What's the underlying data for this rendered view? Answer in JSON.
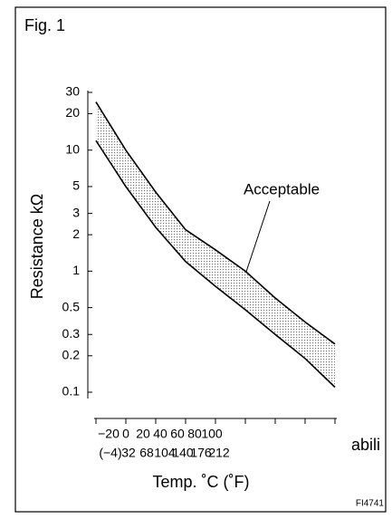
{
  "chart_data": {
    "type": "band",
    "figure_label": "Fig. 1",
    "y_label": "Resistance kΩ",
    "x_label": "Temp. ˚C (˚F)",
    "annotation": "Acceptable",
    "code": "FI4741",
    "stray_text": "abili",
    "x": [
      -20,
      0,
      20,
      40,
      60,
      80,
      100,
      120,
      140
    ],
    "series": [
      {
        "name": "upper",
        "color": "#000000",
        "values": [
          25,
          10,
          4.5,
          2.2,
          1.5,
          1.0,
          0.6,
          0.38,
          0.25
        ]
      },
      {
        "name": "lower",
        "color": "#000000",
        "values": [
          12,
          5,
          2.3,
          1.2,
          0.75,
          0.48,
          0.3,
          0.19,
          0.11
        ]
      }
    ],
    "xlim": [
      -20,
      140
    ],
    "xticks": [
      {
        "value": -20,
        "label": "−20",
        "label2": "(−4)"
      },
      {
        "value": 0,
        "label": "0",
        "label2": "32"
      },
      {
        "value": 20,
        "label": "20",
        "label2": "68"
      },
      {
        "value": 40,
        "label": "40",
        "label2": "104"
      },
      {
        "value": 60,
        "label": "60",
        "label2": "140"
      },
      {
        "value": 80,
        "label": "80",
        "label2": "176"
      },
      {
        "value": 100,
        "label": "100",
        "label2": "212"
      },
      {
        "value": 120,
        "label": null
      },
      {
        "value": 140,
        "label": null
      }
    ],
    "ylim": [
      0.1,
      30
    ],
    "yscale": "log",
    "yticks": [
      30,
      20,
      10,
      5,
      3,
      2,
      1,
      0.5,
      0.3,
      0.2,
      0.1
    ]
  }
}
